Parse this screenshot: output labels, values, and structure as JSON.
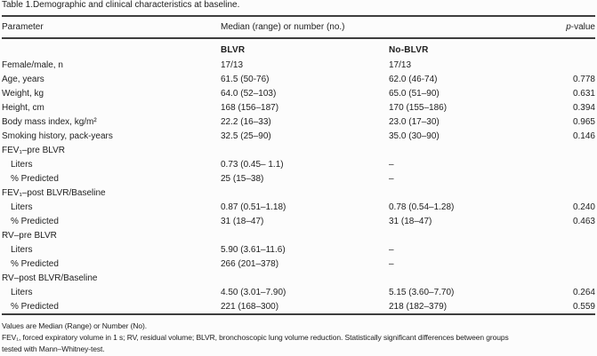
{
  "title": {
    "label_bold": "Table 1.",
    "label_rest": "Demographic and clinical characteristics at baseline."
  },
  "header": {
    "parameter": "Parameter",
    "span_label": "Median (range) or number (no.)",
    "pvalue_italic": "p",
    "pvalue_rest": "-value"
  },
  "subheader": {
    "blvr": "BLVR",
    "no_blvr": "No-BLVR"
  },
  "rows": [
    {
      "param": "Female/male, n",
      "blvr": "17/13",
      "no_blvr": "17/13",
      "p": ""
    },
    {
      "param": "Age, years",
      "blvr": "61.5 (50-76)",
      "no_blvr": "62.0 (46-74)",
      "p": "0.778"
    },
    {
      "param": "Weight, kg",
      "blvr": "64.0 (52–103)",
      "no_blvr": "65.0 (51–90)",
      "p": "0.631"
    },
    {
      "param": "Height, cm",
      "blvr": "168 (156–187)",
      "no_blvr": "170 (155–186)",
      "p": "0.394"
    },
    {
      "param": "Body mass index, kg/m²",
      "blvr": "22.2 (16–33)",
      "no_blvr": "23.0 (17–30)",
      "p": "0.965"
    },
    {
      "param": "Smoking history, pack-years",
      "blvr": "32.5 (25–90)",
      "no_blvr": "35.0 (30–90)",
      "p": "0.146"
    },
    {
      "param": "FEV₁–pre BLVR",
      "blvr": "",
      "no_blvr": "",
      "p": ""
    },
    {
      "param": "Liters",
      "blvr": "0.73 (0.45– 1.1)",
      "no_blvr": "–",
      "p": ""
    },
    {
      "param": "% Predicted",
      "blvr": "25 (15–38)",
      "no_blvr": "–",
      "p": ""
    },
    {
      "param": "FEV₁–post BLVR/Baseline",
      "blvr": "",
      "no_blvr": "",
      "p": ""
    },
    {
      "param": "Liters",
      "blvr": "0.87 (0.51–1.18)",
      "no_blvr": "0.78 (0.54–1.28)",
      "p": "0.240"
    },
    {
      "param": "% Predicted",
      "blvr": "31 (18–47)",
      "no_blvr": "31 (18–47)",
      "p": "0.463"
    },
    {
      "param": "RV–pre BLVR",
      "blvr": "",
      "no_blvr": "",
      "p": ""
    },
    {
      "param": "Liters",
      "blvr": "5.90 (3.61–11.6)",
      "no_blvr": "–",
      "p": ""
    },
    {
      "param": "% Predicted",
      "blvr": "266 (201–378)",
      "no_blvr": "–",
      "p": ""
    },
    {
      "param": "RV–post BLVR/Baseline",
      "blvr": "",
      "no_blvr": "",
      "p": ""
    },
    {
      "param": "Liters",
      "blvr": "4.50 (3.01–7.90)",
      "no_blvr": "5.15 (3.60–7.70)",
      "p": "0.264"
    },
    {
      "param": "% Predicted",
      "blvr": "221 (168–300)",
      "no_blvr": "218 (182–379)",
      "p": "0.559"
    }
  ],
  "footnotes": {
    "line1": "Values are Median (Range) or Number (No).",
    "line2a": "FEV₁, forced expiratory volume in 1 s; RV, residual volume; BLVR, bronchoscopic lung volume reduction. Statistically significant differences between groups",
    "line2b": "tested with Mann–Whitney-test."
  }
}
